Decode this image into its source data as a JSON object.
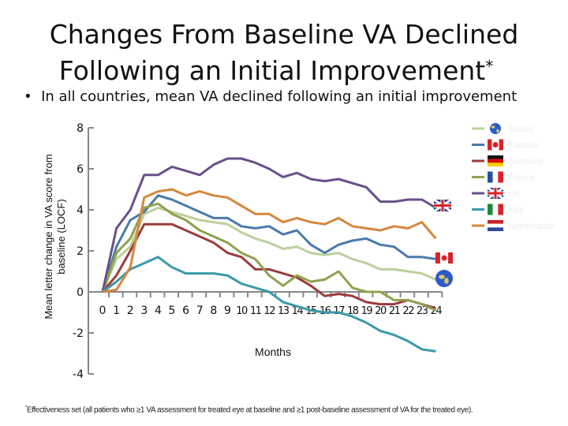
{
  "title_line1": "Changes From Baseline VA Declined",
  "title_line2": "Following an Initial Improvement",
  "title_marker": "*",
  "bullet": "In all countries, mean VA declined following an initial improvement",
  "footnote_marker": "*",
  "footnote": "Effectiveness set (all patients who ≥1 VA assessment for treated eye at baseline and ≥1 post-baseline assessment of VA for the treated eye).",
  "chart_data": {
    "type": "line",
    "title": "",
    "xlabel": "Months",
    "ylabel": "Mean letter change in VA score from baseline (LOCF)",
    "xlim": [
      0,
      24
    ],
    "ylim": [
      -4,
      8
    ],
    "y_ticks": [
      8,
      6,
      4,
      2,
      0,
      -2,
      -4
    ],
    "x_ticks": [
      0,
      1,
      2,
      3,
      4,
      5,
      6,
      7,
      8,
      9,
      10,
      11,
      12,
      13,
      14,
      15,
      16,
      17,
      18,
      19,
      20,
      21,
      22,
      23,
      24
    ],
    "grid": false,
    "legend_position": "right",
    "x": [
      0,
      1,
      2,
      3,
      4,
      5,
      6,
      7,
      8,
      9,
      10,
      11,
      12,
      13,
      14,
      15,
      16,
      17,
      18,
      19,
      20,
      21,
      22,
      23,
      24
    ],
    "series": [
      {
        "name": "Global",
        "color": "#bcd09a",
        "icon": "globe-icon",
        "values": [
          0,
          1.6,
          2.2,
          3.8,
          4.1,
          3.9,
          3.7,
          3.5,
          3.4,
          3.3,
          2.9,
          2.6,
          2.4,
          2.1,
          2.2,
          1.9,
          1.8,
          1.9,
          1.6,
          1.4,
          1.1,
          1.1,
          1.0,
          0.9,
          0.6
        ]
      },
      {
        "name": "Canada",
        "color": "#4a7aab",
        "icon": "canada-flag-icon",
        "values": [
          0,
          2.2,
          3.5,
          3.9,
          4.7,
          4.5,
          4.2,
          3.9,
          3.6,
          3.6,
          3.2,
          3.1,
          3.2,
          2.8,
          3.0,
          2.3,
          1.9,
          2.3,
          2.5,
          2.6,
          2.3,
          2.2,
          1.7,
          1.7,
          1.6
        ]
      },
      {
        "name": "Germany",
        "color": "#9b3c3c",
        "icon": "germany-flag-icon",
        "values": [
          0,
          0.8,
          2.0,
          3.3,
          3.3,
          3.3,
          3.0,
          2.7,
          2.4,
          1.9,
          1.7,
          1.1,
          1.1,
          0.9,
          0.7,
          0.3,
          -0.2,
          -0.1,
          -0.2,
          -0.5,
          -0.6,
          -0.6,
          -0.4,
          -0.6,
          -0.8
        ]
      },
      {
        "name": "France",
        "color": "#8ea24e",
        "icon": "france-flag-icon",
        "values": [
          0,
          1.9,
          2.6,
          4.1,
          4.3,
          3.8,
          3.5,
          3.0,
          2.7,
          2.4,
          1.9,
          1.6,
          0.8,
          0.3,
          0.8,
          0.5,
          0.6,
          1.0,
          0.2,
          0.0,
          0.0,
          -0.4,
          -0.4,
          -0.6,
          -0.9
        ]
      },
      {
        "name": "UK",
        "color": "#6a4f8a",
        "icon": "uk-flag-icon",
        "values": [
          0,
          3.1,
          4.0,
          5.7,
          5.7,
          6.1,
          5.9,
          5.7,
          6.2,
          6.5,
          6.5,
          6.3,
          6.0,
          5.6,
          5.8,
          5.5,
          5.4,
          5.5,
          5.3,
          5.1,
          4.4,
          4.4,
          4.5,
          4.5,
          4.1
        ]
      },
      {
        "name": "Italy",
        "color": "#3a9aa8",
        "icon": "italy-flag-icon",
        "values": [
          0,
          0.5,
          1.1,
          1.4,
          1.7,
          1.2,
          0.9,
          0.9,
          0.9,
          0.8,
          0.4,
          0.2,
          0.0,
          -0.5,
          -0.7,
          -0.9,
          -1.0,
          -1.0,
          -1.2,
          -1.5,
          -1.9,
          -2.1,
          -2.4,
          -2.8,
          -2.9
        ]
      },
      {
        "name": "Netherlands",
        "color": "#d4883c",
        "icon": "netherlands-flag-icon",
        "values": [
          0,
          0.1,
          1.2,
          4.6,
          4.9,
          5.0,
          4.7,
          4.9,
          4.7,
          4.6,
          4.2,
          3.8,
          3.8,
          3.4,
          3.6,
          3.4,
          3.3,
          3.6,
          3.2,
          3.1,
          3.0,
          3.2,
          3.1,
          3.4,
          2.6
        ]
      }
    ],
    "end_markers": [
      "uk-flag-icon",
      "canada-flag-icon",
      "globe-icon"
    ]
  }
}
